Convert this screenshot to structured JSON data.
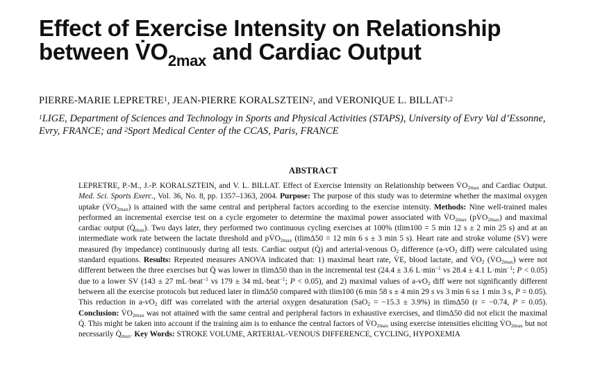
{
  "title": {
    "line1": "Effect of Exercise Intensity on Relationship",
    "line2_prefix": "between V̇O",
    "line2_sub": "2max",
    "line2_suffix": " and Cardiac Output"
  },
  "authors": {
    "a1": "PIERRE-MARIE LEPRETRE",
    "a1_sup": "1",
    "a2": ", JEAN-PIERRE KORALSZTEIN",
    "a2_sup": "2",
    "a3": ", and VERONIQUE L. BILLAT",
    "a3_sup": "1,2"
  },
  "affiliation": {
    "sup1": "1",
    "text1": "LIGE, Department of Sciences and Technology in Sports and Physical Activities (STAPS), University of Evry Val d’Essonne, Evry, FRANCE; and ",
    "sup2": "2",
    "text2": "Sport Medical Center of the CCAS, Paris, FRANCE"
  },
  "abstract_heading": "ABSTRACT",
  "abstract": {
    "t01": "LEPRETRE, P.-M., J.-P. KORALSZTEIN, and V. L. BILLAT. Effect of Exercise Intensity on Relationship between V̇O",
    "s01": "2max",
    "t02": " and Cardiac Output. ",
    "journal": "Med. Sci. Sports Exerc.",
    "t03": ", Vol. 36, No. 8, pp. 1357–1363, 2004. ",
    "purpose_label": "Purpose:",
    "t04": " The purpose of this study was to determine whether the maximal oxygen uptake (V̇O",
    "s02": "2max",
    "t05": ") is attained with the same central and peripheral factors according to the exercise intensity. ",
    "methods_label": "Methods:",
    "t06": " Nine well-trained males performed an incremental exercise test on a cycle ergometer to determine the maximal power associated with V̇O",
    "s03": "2max",
    "t07": " (pV̇O",
    "s04": "2max",
    "t08": ") and maximal cardiac output (Q̇",
    "s05": "max",
    "t09": "). Two days later, they performed two continuous cycling exercises at 100% (tlim100 = 5 min 12 s ± 2 min 25 s) and at an intermediate work rate between the lactate threshold and pV̇O",
    "s06": "2max",
    "t10": " (tlimΔ50 = 12 min 6 s ± 3 min 5 s). Heart rate and stroke volume (SV) were measured (by impedance) continuously during all tests. Cardiac output (Q̇) and arterial-venous O",
    "s07": "2",
    "t11": " difference (a-vO",
    "s08": "2",
    "t12": " diff) were calculated using standard equations. ",
    "results_label": "Results:",
    "t13": " Repeated measures ANOVA indicated that: 1) maximal heart rate, V̇E, blood lactate, and V̇O",
    "s09": "2",
    "t14": " (V̇O",
    "s10": "2max",
    "t15": ") were not different between the three exercises but Q̇ was lower in tlimΔ50 than in the incremental test (24.4 ± 3.6 L·min",
    "p01": "−1",
    "t16": " vs 28.4 ± 4.1 L·min",
    "p02": "−1",
    "t17": "; ",
    "p_italic1": "P",
    "t18": " < 0.05) due to a lower SV (143 ± 27 mL·beat",
    "p03": "−1",
    "t19": " vs 179 ± 34 mL·beat",
    "p04": "−1",
    "t20": "; ",
    "p_italic2": "P",
    "t21": " < 0.05), and 2) maximal values of a-vO",
    "s11": "2",
    "t22": " diff were not significantly different between all the exercise protocols but reduced later in tlimΔ50 compared with tlim100 (6 min 58 s ± 4 min 29 s vs 3 min 6 s± 1 min 3 s, ",
    "p_italic3": "P",
    "t23": " = 0.05). This reduction in a-vO",
    "s12": "2",
    "t24": " diff was correlated with the arterial oxygen desaturation (SaO",
    "s13": "2",
    "t25": " = −15.3 ± 3.9%) in tlimΔ50 (r = −0.74, ",
    "p_italic4": "P",
    "t26": " = 0.05). ",
    "conclusion_label": "Conclusion:",
    "t27": " V̇O",
    "s14": "2max",
    "t28": " was not attained with the same central and peripheral factors in exhaustive exercises, and tlimΔ50 did not elicit the maximal Q̇. This might be taken into account if the training aim is to enhance the central factors of V̇O",
    "s15": "2max",
    "t29": " using exercise intensities eliciting V̇O",
    "s16": "2max",
    "t30": " but not necessarily Q̇",
    "s17": "max",
    "t31": ". ",
    "keywords_label": "Key Words:",
    "t32": " STROKE VOLUME, ARTERIAL-VENOUS DIFFERENCE, CYCLING, HYPOXEMIA"
  }
}
